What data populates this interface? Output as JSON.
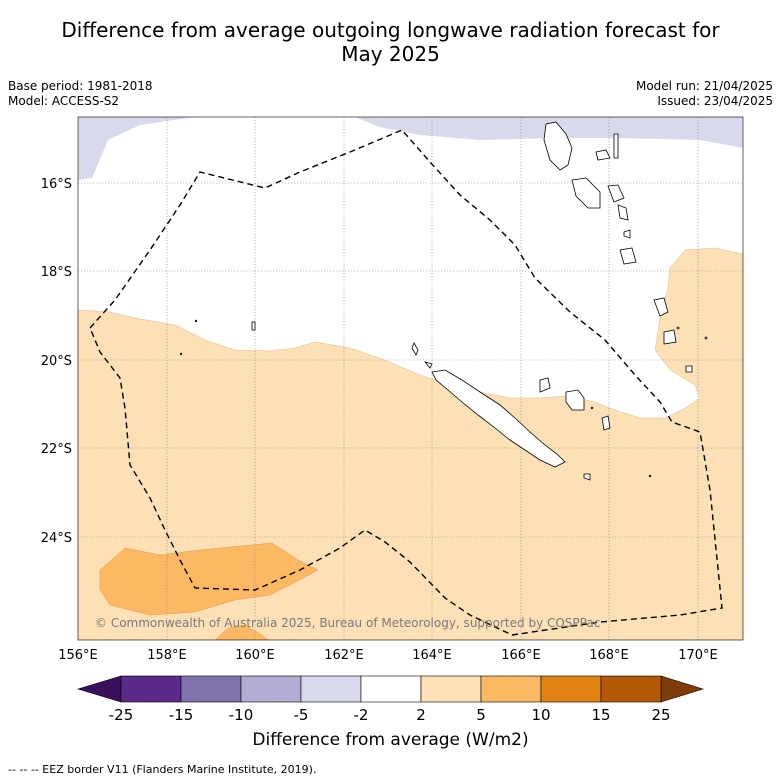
{
  "title_line1": "Difference from average outgoing longwave radiation forecast for",
  "title_line2": "May 2025",
  "base_period": "Base period: 1981-2018",
  "model": "Model: ACCESS-S2",
  "model_run": "Model run: 21/04/2025",
  "issued": "Issued: 23/04/2025",
  "copyright": "© Commonwealth of Australia 2025, Bureau of Meteorology, supported by COSPPac",
  "lat_labels": [
    "16°S",
    "18°S",
    "20°S",
    "22°S",
    "24°S"
  ],
  "lon_labels": [
    "156°E",
    "158°E",
    "160°E",
    "162°E",
    "164°E",
    "166°E",
    "168°E",
    "170°E"
  ],
  "colorbar": {
    "tick_labels": [
      "-25",
      "-15",
      "-10",
      "-5",
      "-2",
      "2",
      "5",
      "10",
      "15",
      "25"
    ],
    "colors": [
      "#5b2a8a",
      "#8073ad",
      "#b2abd2",
      "#d8daeb",
      "#ffffff",
      "#fde0b6",
      "#fdb863",
      "#e08214",
      "#b35806"
    ],
    "under_color": "#3a0f5c",
    "over_color": "#7f3b08",
    "label": "Difference from average (W/m2)"
  },
  "footer": "--  --  -- EEZ border V11 (Flanders Marine Institute, 2019)."
}
